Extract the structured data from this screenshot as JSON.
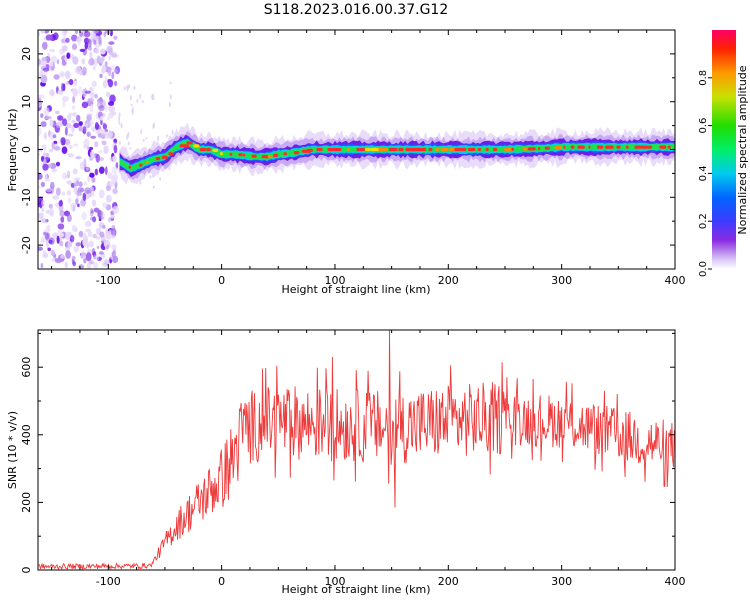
{
  "title": "S118.2023.016.00.37.G12",
  "chart_data": [
    {
      "type": "heatmap",
      "xlabel": "Height of straight line (km)",
      "ylabel": "Frequency (Hz)",
      "xlim": [
        -162,
        400
      ],
      "ylim": [
        -25,
        25
      ],
      "xticks": [
        -100,
        0,
        100,
        200,
        300,
        400
      ],
      "yticks": [
        -20,
        -10,
        0,
        10,
        20
      ],
      "colorbar": {
        "label": "Normalized spectral amplitude",
        "range": [
          0,
          1
        ],
        "ticks": [
          "0.0",
          "0.2",
          "0.4",
          "0.6",
          "0.8"
        ]
      },
      "ridge": {
        "x": [
          -90,
          -80,
          -70,
          -60,
          -50,
          -40,
          -30,
          -20,
          -10,
          0,
          10,
          20,
          30,
          40,
          50,
          60,
          80,
          100,
          150,
          200,
          250,
          280,
          300,
          350,
          400
        ],
        "y": [
          -2.5,
          -4,
          -3,
          -2,
          -1.5,
          0.5,
          1.5,
          0,
          0,
          -1,
          -1,
          -1.2,
          -1.5,
          -1.5,
          -1,
          -0.8,
          0,
          0,
          0,
          0,
          0,
          0.2,
          0.5,
          0.5,
          0.5
        ]
      },
      "noise_region_x": [
        -162,
        -92
      ]
    },
    {
      "type": "line",
      "xlabel": "Height of straight line (km)",
      "ylabel": "SNR (10 * v/v)",
      "xlim": [
        -162,
        400
      ],
      "ylim": [
        0,
        710
      ],
      "xticks": [
        -100,
        0,
        100,
        200,
        300,
        400
      ],
      "yticks": [
        0,
        200,
        400,
        600
      ],
      "color": "#ee3a3a",
      "trend": {
        "x": [
          -162,
          -70,
          -62,
          -50,
          -40,
          -20,
          0,
          10,
          15,
          20,
          50,
          100,
          150,
          200,
          250,
          300,
          350,
          400
        ],
        "y": [
          10,
          12,
          15,
          80,
          130,
          200,
          270,
          330,
          380,
          420,
          440,
          430,
          420,
          440,
          450,
          440,
          400,
          360
        ]
      },
      "peaks": [
        {
          "x": 98,
          "y": 630
        },
        {
          "x": 148,
          "y": 710
        },
        {
          "x": 153,
          "y": 185
        }
      ]
    }
  ]
}
